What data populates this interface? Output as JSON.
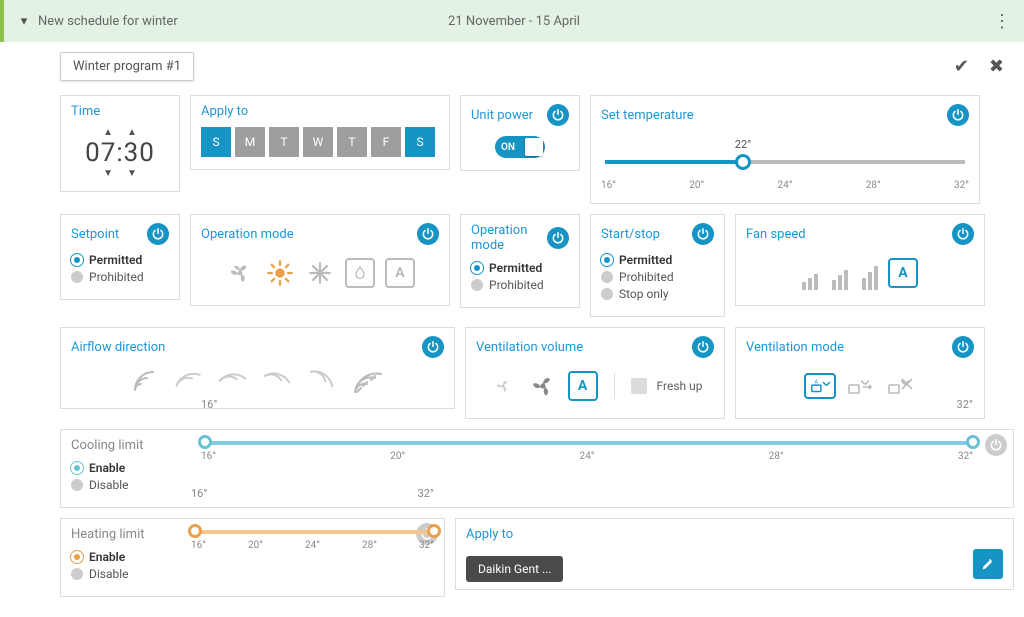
{
  "colors": {
    "accent": "#1694c4",
    "header_bg": "#e3f2e3",
    "header_accent": "#8bc34a",
    "gray": "#9e9e9e",
    "gray_light": "#bbbbbb",
    "orange_mode": "#e8a04a",
    "teal": "#69c1d4",
    "peach": "#f0b879",
    "text_muted": "#888888"
  },
  "header": {
    "title": "New schedule for winter",
    "date_range": "21 November - 15 April"
  },
  "program_name": "Winter program #1",
  "time_card": {
    "title": "Time",
    "value": "07:30"
  },
  "apply_days": {
    "title": "Apply to",
    "days": [
      {
        "label": "S",
        "selected": true
      },
      {
        "label": "M",
        "selected": false
      },
      {
        "label": "T",
        "selected": false
      },
      {
        "label": "W",
        "selected": false
      },
      {
        "label": "T",
        "selected": false
      },
      {
        "label": "F",
        "selected": false
      },
      {
        "label": "S",
        "selected": true
      }
    ]
  },
  "unit_power": {
    "title": "Unit power",
    "state": "ON",
    "power_active": true
  },
  "set_temperature": {
    "title": "Set temperature",
    "value": 22,
    "value_label": "22°",
    "min": 16,
    "max": 32,
    "ticks": [
      "16°",
      "20°",
      "24°",
      "28°",
      "32°"
    ],
    "power_active": true
  },
  "setpoint": {
    "title": "Setpoint",
    "power_active": true,
    "options": [
      {
        "label": "Permitted",
        "selected": true
      },
      {
        "label": "Prohibited",
        "selected": false
      }
    ]
  },
  "operation_mode_icons": {
    "title": "Operation mode",
    "power_active": true
  },
  "operation_mode_radio": {
    "title": "Operation mode",
    "power_active": true,
    "options": [
      {
        "label": "Permitted",
        "selected": true
      },
      {
        "label": "Prohibited",
        "selected": false
      }
    ]
  },
  "start_stop": {
    "title": "Start/stop",
    "power_active": true,
    "options": [
      {
        "label": "Permitted",
        "selected": true
      },
      {
        "label": "Prohibited",
        "selected": false
      },
      {
        "label": "Stop only",
        "selected": false
      }
    ]
  },
  "fan_speed": {
    "title": "Fan speed",
    "power_active": true
  },
  "airflow": {
    "title": "Airflow direction",
    "power_active": true
  },
  "vent_volume": {
    "title": "Ventilation volume",
    "power_active": true,
    "freshup": "Fresh up"
  },
  "vent_mode": {
    "title": "Ventilation mode",
    "power_active": true
  },
  "cooling_limit": {
    "title": "Cooling limit",
    "power_active": false,
    "enable": "Enable",
    "disable": "Disable",
    "min": 16,
    "max": 32,
    "low": 16,
    "high": 32,
    "ticks": [
      "16°",
      "20°",
      "24°",
      "28°",
      "32°"
    ],
    "low_label": "16°",
    "high_label": "32°",
    "track_color": "#7fcde0",
    "thumb_color": "#69c1d4"
  },
  "heating_limit": {
    "title": "Heating limit",
    "power_active": false,
    "enable": "Enable",
    "disable": "Disable",
    "min": 16,
    "max": 32,
    "low": 16,
    "high": 32,
    "ticks": [
      "16°",
      "20°",
      "24°",
      "28°",
      "32°"
    ],
    "low_label": "16°",
    "high_label": "32°",
    "track_color": "#f3c690",
    "thumb_color": "#e8a04a"
  },
  "apply_to_units": {
    "title": "Apply to",
    "tag": "Daikin Gent ..."
  }
}
